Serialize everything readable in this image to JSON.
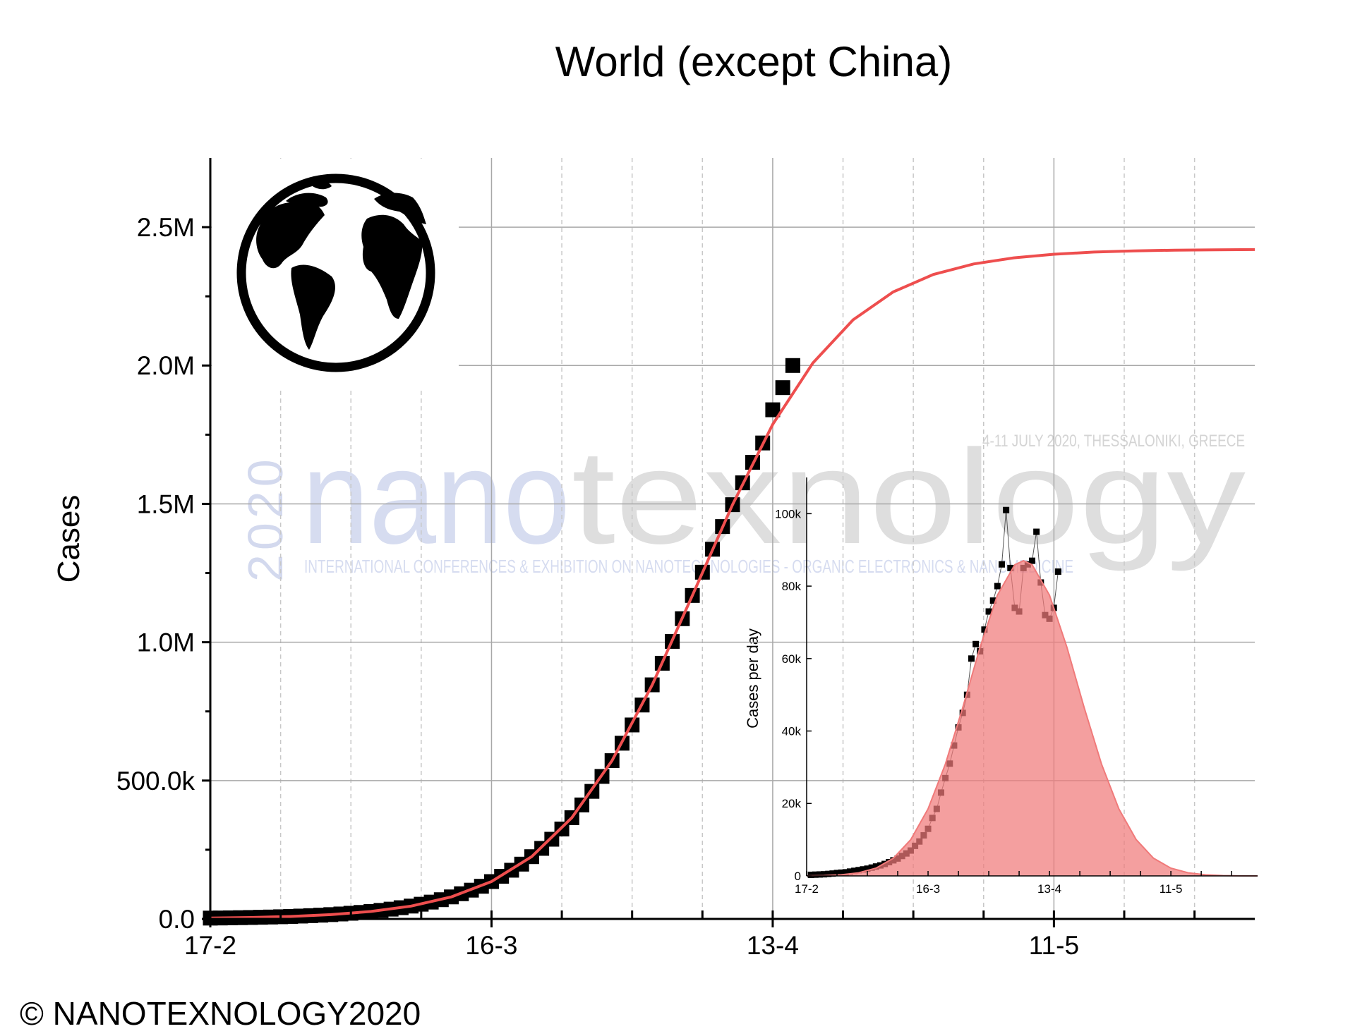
{
  "chart_data": [
    {
      "type": "line",
      "title": "World (except China)",
      "y_label": "Cases",
      "x": [
        0,
        1,
        2,
        3,
        4,
        5,
        6,
        7,
        8,
        9,
        10,
        11,
        12,
        13,
        14,
        15,
        16,
        17,
        18,
        19,
        20,
        21,
        22,
        23,
        24,
        25,
        26,
        27,
        28,
        29,
        30,
        31,
        32,
        33,
        34,
        35,
        36,
        37,
        38,
        39,
        40,
        41,
        42,
        43,
        44,
        45,
        46,
        47,
        48,
        49,
        50,
        51,
        52,
        53,
        54,
        55,
        56,
        57,
        58
      ],
      "series": [
        {
          "color": "#000000",
          "marker": "square",
          "values": [
            3000,
            3400,
            3950,
            4530,
            5200,
            5980,
            6860,
            7860,
            9030,
            10340,
            11860,
            13600,
            15600,
            17900,
            20500,
            23500,
            27000,
            30900,
            35400,
            40600,
            46400,
            53200,
            60800,
            69500,
            79600,
            91000,
            104000,
            118000,
            135000,
            154000,
            176000,
            198000,
            225000,
            255000,
            288000,
            325000,
            366000,
            412000,
            461000,
            515000,
            572000,
            635000,
            701000,
            773000,
            846000,
            924000,
            1003000,
            1085000,
            1169000,
            1253000,
            1336000,
            1418000,
            1497000,
            1576000,
            1650000,
            1720000,
            1840000,
            1920000,
            2000000
          ]
        },
        {
          "color": "#ee4e4e",
          "x": [
            0,
            4,
            8,
            12,
            16,
            20,
            24,
            28,
            32,
            36,
            40,
            44,
            48,
            52,
            56,
            60,
            64,
            68,
            72,
            76,
            80,
            84,
            88,
            92,
            96,
            100,
            104
          ],
          "values": [
            3000,
            5200,
            9030,
            15600,
            27000,
            46400,
            79600,
            135000,
            225000,
            366000,
            572000,
            846000,
            1169000,
            1497000,
            1787000,
            2009000,
            2165000,
            2266000,
            2329000,
            2367000,
            2389000,
            2402000,
            2410000,
            2414000,
            2417000,
            2418000,
            2419000
          ]
        }
      ],
      "xlim": [
        0,
        104
      ],
      "xticks": [
        {
          "value": 0,
          "label": "17-2"
        },
        {
          "value": 28,
          "label": "16-3"
        },
        {
          "value": 56,
          "label": "13-4"
        },
        {
          "value": 84,
          "label": "11-5"
        }
      ],
      "xminor": [
        7,
        14,
        21,
        35,
        42,
        49,
        63,
        70,
        77,
        91,
        98
      ],
      "ylim": [
        0,
        2750000
      ],
      "yticks": [
        {
          "value": 0,
          "label": "0.0"
        },
        {
          "value": 500000,
          "label": "500.0k"
        },
        {
          "value": 1000000,
          "label": "1.0M"
        },
        {
          "value": 1500000,
          "label": "1.5M"
        },
        {
          "value": 2000000,
          "label": "2.0M"
        },
        {
          "value": 2500000,
          "label": "2.5M"
        }
      ],
      "yminor": [
        250000,
        750000,
        1250000,
        1750000,
        2250000
      ],
      "grid": true
    },
    {
      "type": "line",
      "y_label": "Cases per day",
      "series": [
        {
          "color": "#000000",
          "marker": "square",
          "x": [
            1,
            2,
            3,
            4,
            5,
            6,
            7,
            8,
            9,
            10,
            11,
            12,
            13,
            14,
            15,
            16,
            17,
            18,
            19,
            20,
            21,
            22,
            23,
            24,
            25,
            26,
            27,
            28,
            29,
            30,
            31,
            32,
            33,
            34,
            35,
            36,
            37,
            38,
            39,
            40,
            41,
            42,
            43,
            44,
            45,
            46,
            47,
            48,
            49,
            50,
            51,
            52,
            53,
            54,
            55,
            56,
            57,
            58
          ],
          "values": [
            300,
            350,
            400,
            450,
            550,
            650,
            800,
            900,
            1000,
            1200,
            1400,
            1600,
            1800,
            2000,
            2300,
            2600,
            2900,
            3300,
            3800,
            4300,
            4800,
            5500,
            6200,
            7000,
            8300,
            9500,
            11200,
            13000,
            16000,
            18500,
            23000,
            27000,
            31000,
            36000,
            41000,
            45000,
            50000,
            60000,
            64000,
            62000,
            68000,
            73000,
            76000,
            80000,
            86000,
            101000,
            85000,
            74000,
            73000,
            85000,
            86000,
            87000,
            95000,
            81000,
            72000,
            71000,
            74000,
            84000
          ]
        },
        {
          "color": "#f07a7a",
          "fill": true,
          "x": [
            0,
            4,
            8,
            12,
            16,
            20,
            24,
            28,
            32,
            36,
            40,
            44,
            48,
            50,
            52,
            56,
            60,
            64,
            68,
            72,
            76,
            80,
            84,
            88,
            92,
            96,
            100,
            104
          ],
          "values": [
            29,
            100,
            308,
            857,
            2150,
            4880,
            10000,
            18500,
            30900,
            46500,
            63200,
            77500,
            85900,
            87000,
            85900,
            77500,
            63200,
            46500,
            30900,
            18500,
            10000,
            4880,
            2150,
            857,
            308,
            100,
            29,
            7
          ]
        }
      ],
      "xlim": [
        0,
        104
      ],
      "xticks": [
        {
          "value": 0,
          "label": "17-2"
        },
        {
          "value": 28,
          "label": "16-3"
        },
        {
          "value": 56,
          "label": "13-4"
        },
        {
          "value": 84,
          "label": "11-5"
        }
      ],
      "xminor": [
        7,
        14,
        21,
        35,
        42,
        49,
        63,
        70,
        77,
        91,
        98
      ],
      "ylim": [
        0,
        110000
      ],
      "yticks": [
        0,
        {
          "value": 20000,
          "label": "20k"
        },
        {
          "value": 40000,
          "label": "40k"
        },
        {
          "value": 60000,
          "label": "60k"
        },
        {
          "value": 80000,
          "label": "80k"
        },
        {
          "value": 100000,
          "label": "100k"
        }
      ],
      "grid": false
    }
  ],
  "footer": "© NANOTEXNOLOGY2020",
  "watermark": {
    "year": "2020",
    "nano": "nano",
    "texnology": "texnology",
    "dates": "4-11 JULY 2020, THESSALONIKI, GREECE",
    "conference": "INTERNATIONAL CONFERENCES & EXHIBITION ON NANOTECHNOLOGIES - ORGANIC ELECTRONICS & NANOMEDICINE"
  }
}
